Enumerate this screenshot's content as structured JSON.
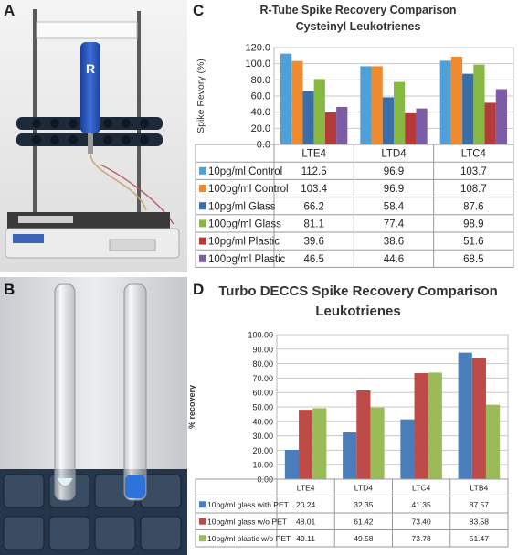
{
  "panels": {
    "a": "A",
    "b": "B",
    "c": "C",
    "d": "D"
  },
  "chart_data": [
    {
      "type": "bar",
      "title": "R-Tube Spike Recovery Comparison",
      "subtitle": "Cysteinyl Leukotrienes",
      "ylabel": "Spike Revory (%)",
      "xlabel": "",
      "ylim": [
        0,
        120
      ],
      "yticks": [
        "0.0",
        "20.0",
        "40.0",
        "60.0",
        "80.0",
        "100.0",
        "120.0"
      ],
      "grid": true,
      "categories": [
        "LTE4",
        "LTD4",
        "LTC4"
      ],
      "series": [
        {
          "name": "10pg/ml Control",
          "color": "#4f9fd8",
          "values": [
            "112.5",
            "96.9",
            "103.7"
          ]
        },
        {
          "name": "100pg/ml Control",
          "color": "#ef8a2e",
          "values": [
            "103.4",
            "96.9",
            "108.7"
          ]
        },
        {
          "name": "10pg/ml Glass",
          "color": "#3a6ea8",
          "values": [
            "66.2",
            "58.4",
            "87.6"
          ]
        },
        {
          "name": "100pg/ml Glass",
          "color": "#86b842",
          "values": [
            "81.1",
            "77.4",
            "98.9"
          ]
        },
        {
          "name": "10pg/ml Plastic",
          "color": "#b73a3a",
          "values": [
            "39.6",
            "38.6",
            "51.6"
          ]
        },
        {
          "name": "100pg/ml Plastic",
          "color": "#7c5ca6",
          "values": [
            "46.5",
            "44.6",
            "68.5"
          ]
        }
      ]
    },
    {
      "type": "bar",
      "title": "Turbo DECCS Spike Recovery Comparison",
      "subtitle": "Leukotrienes",
      "ylabel": "% recovery",
      "xlabel": "",
      "ylim": [
        0,
        100
      ],
      "yticks": [
        "0.00",
        "10.00",
        "20.00",
        "30.00",
        "40.00",
        "50.00",
        "60.00",
        "70.00",
        "80.00",
        "90.00",
        "100.00"
      ],
      "grid": true,
      "categories": [
        "LTE4",
        "LTD4",
        "LTC4",
        "LTB4"
      ],
      "series": [
        {
          "name": "10pg/ml glass with PET",
          "color": "#4a7ebb",
          "values": [
            "20.24",
            "32.35",
            "41.35",
            "87.57"
          ]
        },
        {
          "name": "10pg/ml glass w/o PET",
          "color": "#be4b48",
          "values": [
            "48.01",
            "61.42",
            "73.40",
            "83.58"
          ]
        },
        {
          "name": "10pg/ml plastic w/o PET",
          "color": "#9bbb59",
          "values": [
            "49.11",
            "49.58",
            "73.78",
            "51.47"
          ]
        }
      ]
    }
  ]
}
